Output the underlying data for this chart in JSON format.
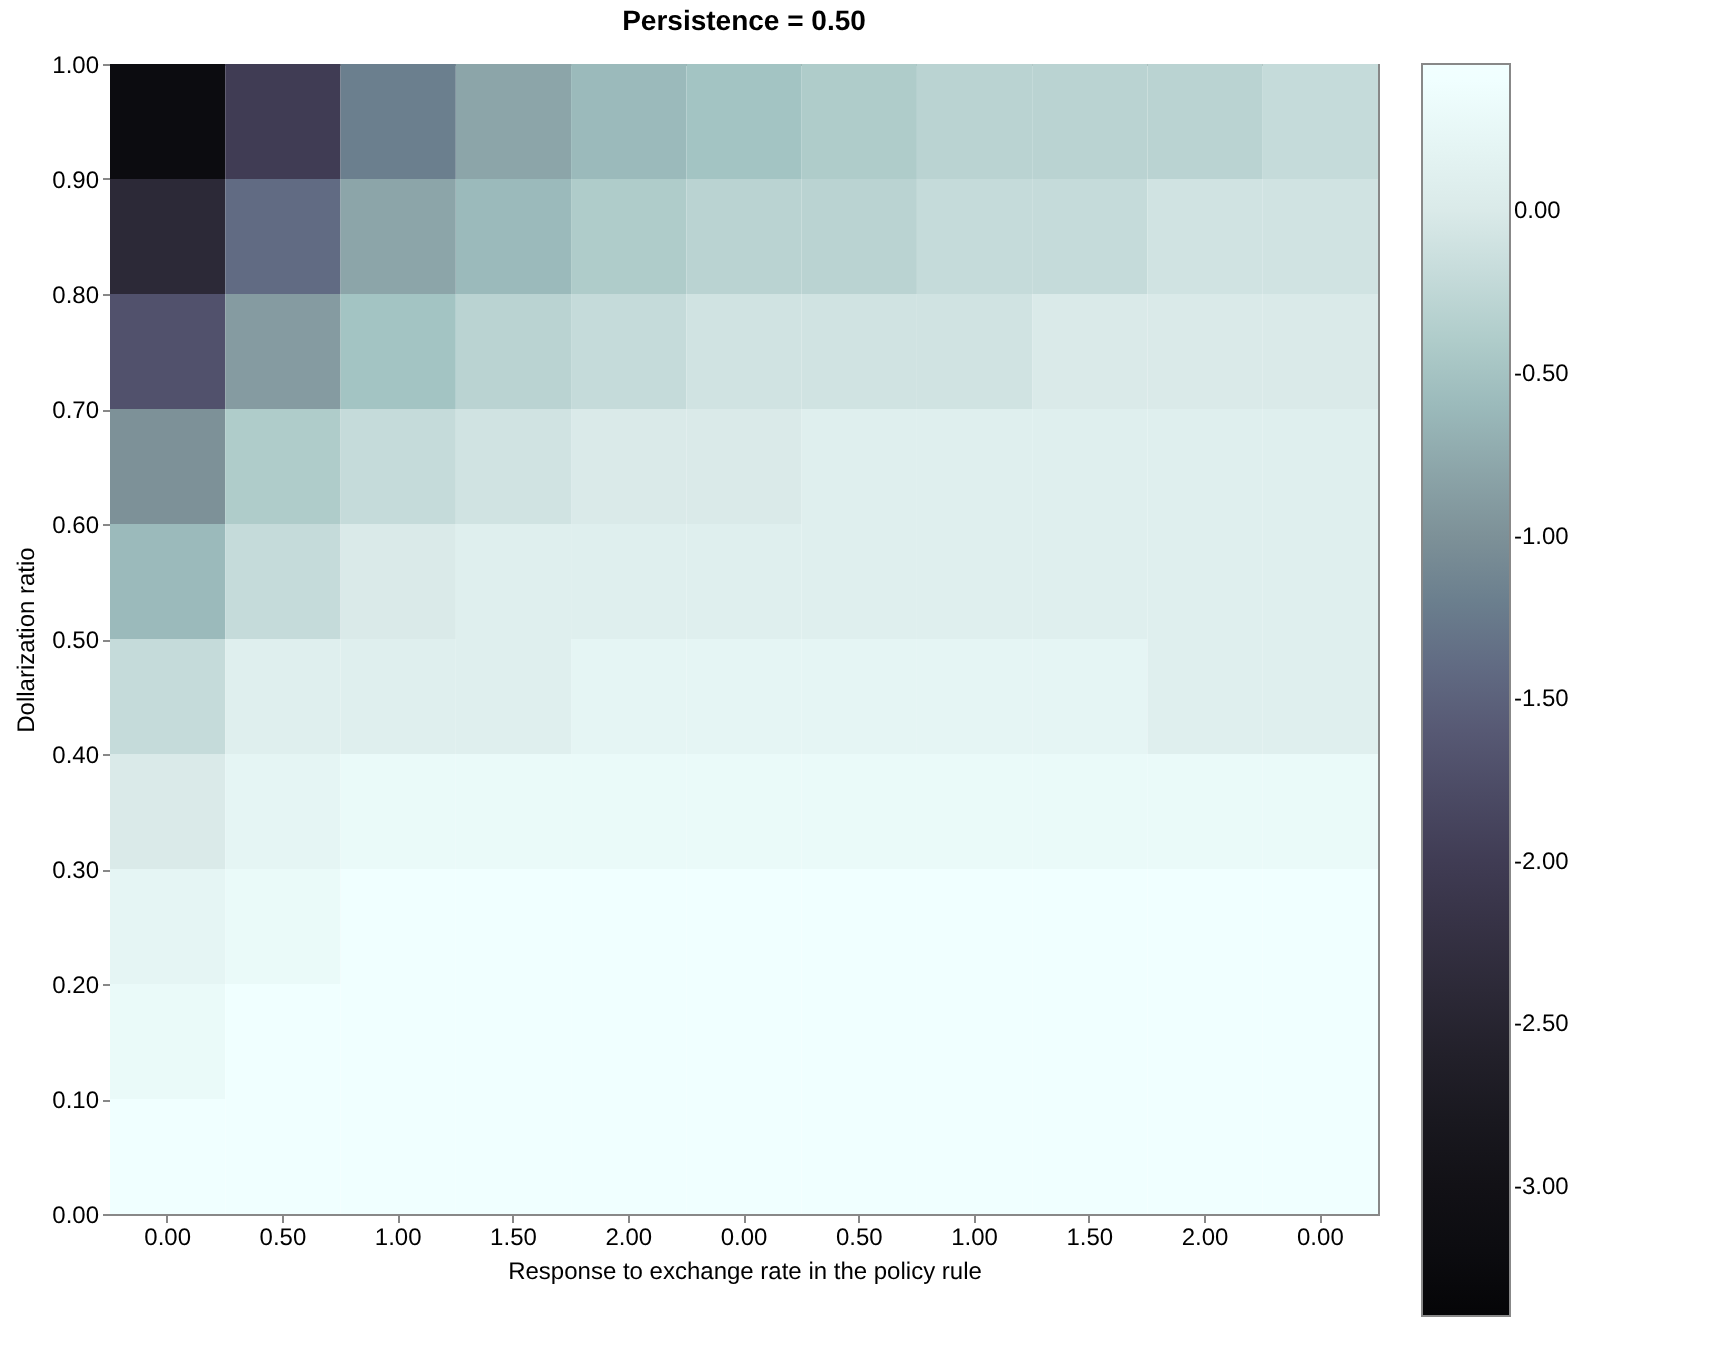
{
  "chart_data": {
    "type": "heatmap",
    "title": "Persistence = 0.50",
    "xlabel": "Response to exchange rate in the policy rule",
    "ylabel": "Dollarization ratio",
    "categories": [
      "0.00",
      "0.50",
      "1.00",
      "1.50",
      "2.00",
      "0.00",
      "0.50",
      "1.00",
      "1.50",
      "2.00",
      "0.00"
    ],
    "ylim": [
      0,
      1
    ],
    "yticks": [
      {
        "value": 0,
        "label": "0.00"
      },
      {
        "value": 0.1,
        "label": "0.10"
      },
      {
        "value": 0.2,
        "label": "0.20"
      },
      {
        "value": 0.3,
        "label": "0.30"
      },
      {
        "value": 0.4,
        "label": "0.40"
      },
      {
        "value": 0.5,
        "label": "0.50"
      },
      {
        "value": 0.6,
        "label": "0.60"
      },
      {
        "value": 0.7,
        "label": "0.70"
      },
      {
        "value": 0.8,
        "label": "0.80"
      },
      {
        "value": 0.9,
        "label": "0.90"
      },
      {
        "value": 1,
        "label": "1.00"
      }
    ],
    "clim": [
      -3.4,
      0.45
    ],
    "cticks": [
      {
        "value": 0,
        "label": "0.00"
      },
      {
        "value": -0.5,
        "label": "-0.50"
      },
      {
        "value": -1,
        "label": "-1.00"
      },
      {
        "value": -1.5,
        "label": "-1.50"
      },
      {
        "value": -2,
        "label": "-2.00"
      },
      {
        "value": -2.5,
        "label": "-2.50"
      },
      {
        "value": -3,
        "label": "-3.00"
      }
    ],
    "cells": [
      [
        -3.2,
        -2.0,
        -1.2,
        -0.8,
        -0.6,
        -0.5,
        -0.4,
        -0.3,
        -0.3,
        -0.3,
        -0.2
      ],
      [
        -2.4,
        -1.4,
        -0.8,
        -0.6,
        -0.4,
        -0.3,
        -0.3,
        -0.2,
        -0.2,
        -0.1,
        -0.1
      ],
      [
        -1.7,
        -0.9,
        -0.5,
        -0.3,
        -0.2,
        -0.1,
        -0.1,
        -0.1,
        0.0,
        0.0,
        0.0
      ],
      [
        -1.0,
        -0.4,
        -0.2,
        -0.1,
        0.0,
        0.0,
        0.1,
        0.1,
        0.1,
        0.1,
        0.1
      ],
      [
        -0.6,
        -0.2,
        0.0,
        0.1,
        0.1,
        0.1,
        0.1,
        0.1,
        0.1,
        0.1,
        0.1
      ],
      [
        -0.2,
        0.1,
        0.1,
        0.1,
        0.2,
        0.2,
        0.2,
        0.2,
        0.2,
        0.1,
        0.1
      ],
      [
        0.0,
        0.2,
        0.3,
        0.3,
        0.3,
        0.3,
        0.3,
        0.3,
        0.3,
        0.3,
        0.3
      ],
      [
        0.2,
        0.3,
        0.4,
        0.4,
        0.4,
        0.4,
        0.4,
        0.4,
        0.4,
        0.4,
        0.4
      ],
      [
        0.3,
        0.4,
        0.4,
        0.4,
        0.4,
        0.4,
        0.4,
        0.4,
        0.4,
        0.4,
        0.4
      ],
      [
        0.4,
        0.4,
        0.4,
        0.4,
        0.4,
        0.4,
        0.4,
        0.4,
        0.4,
        0.4,
        0.4
      ]
    ]
  }
}
